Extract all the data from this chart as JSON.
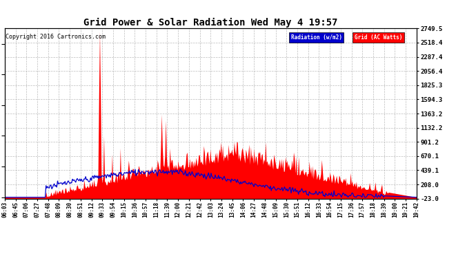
{
  "title": "Grid Power & Solar Radiation Wed May 4 19:57",
  "copyright": "Copyright 2016 Cartronics.com",
  "bg_color": "#ffffff",
  "plot_bg_color": "#ffffff",
  "grid_color": "#aaaaaa",
  "legend_labels": [
    "Radiation (w/m2)",
    "Grid (AC Watts)"
  ],
  "legend_bg_colors": [
    "#0000cc",
    "#ff0000"
  ],
  "right_yticks": [
    2749.5,
    2518.4,
    2287.4,
    2056.4,
    1825.3,
    1594.3,
    1363.2,
    1132.2,
    901.2,
    670.1,
    439.1,
    208.0,
    -23.0
  ],
  "ymin": -23.0,
  "ymax": 2749.5,
  "radiation_color": "#0000cc",
  "grid_power_color": "#ff0000",
  "fill_color": "#ff0000",
  "time_labels": [
    "06:03",
    "06:45",
    "07:06",
    "07:27",
    "07:48",
    "08:09",
    "08:30",
    "08:51",
    "09:12",
    "09:33",
    "09:54",
    "10:15",
    "10:36",
    "10:57",
    "11:18",
    "11:39",
    "12:00",
    "12:21",
    "12:42",
    "13:03",
    "13:24",
    "13:45",
    "14:06",
    "14:27",
    "14:48",
    "15:09",
    "15:30",
    "15:51",
    "16:12",
    "16:33",
    "16:54",
    "17:15",
    "17:36",
    "17:57",
    "18:18",
    "18:39",
    "19:00",
    "19:21",
    "19:42"
  ]
}
